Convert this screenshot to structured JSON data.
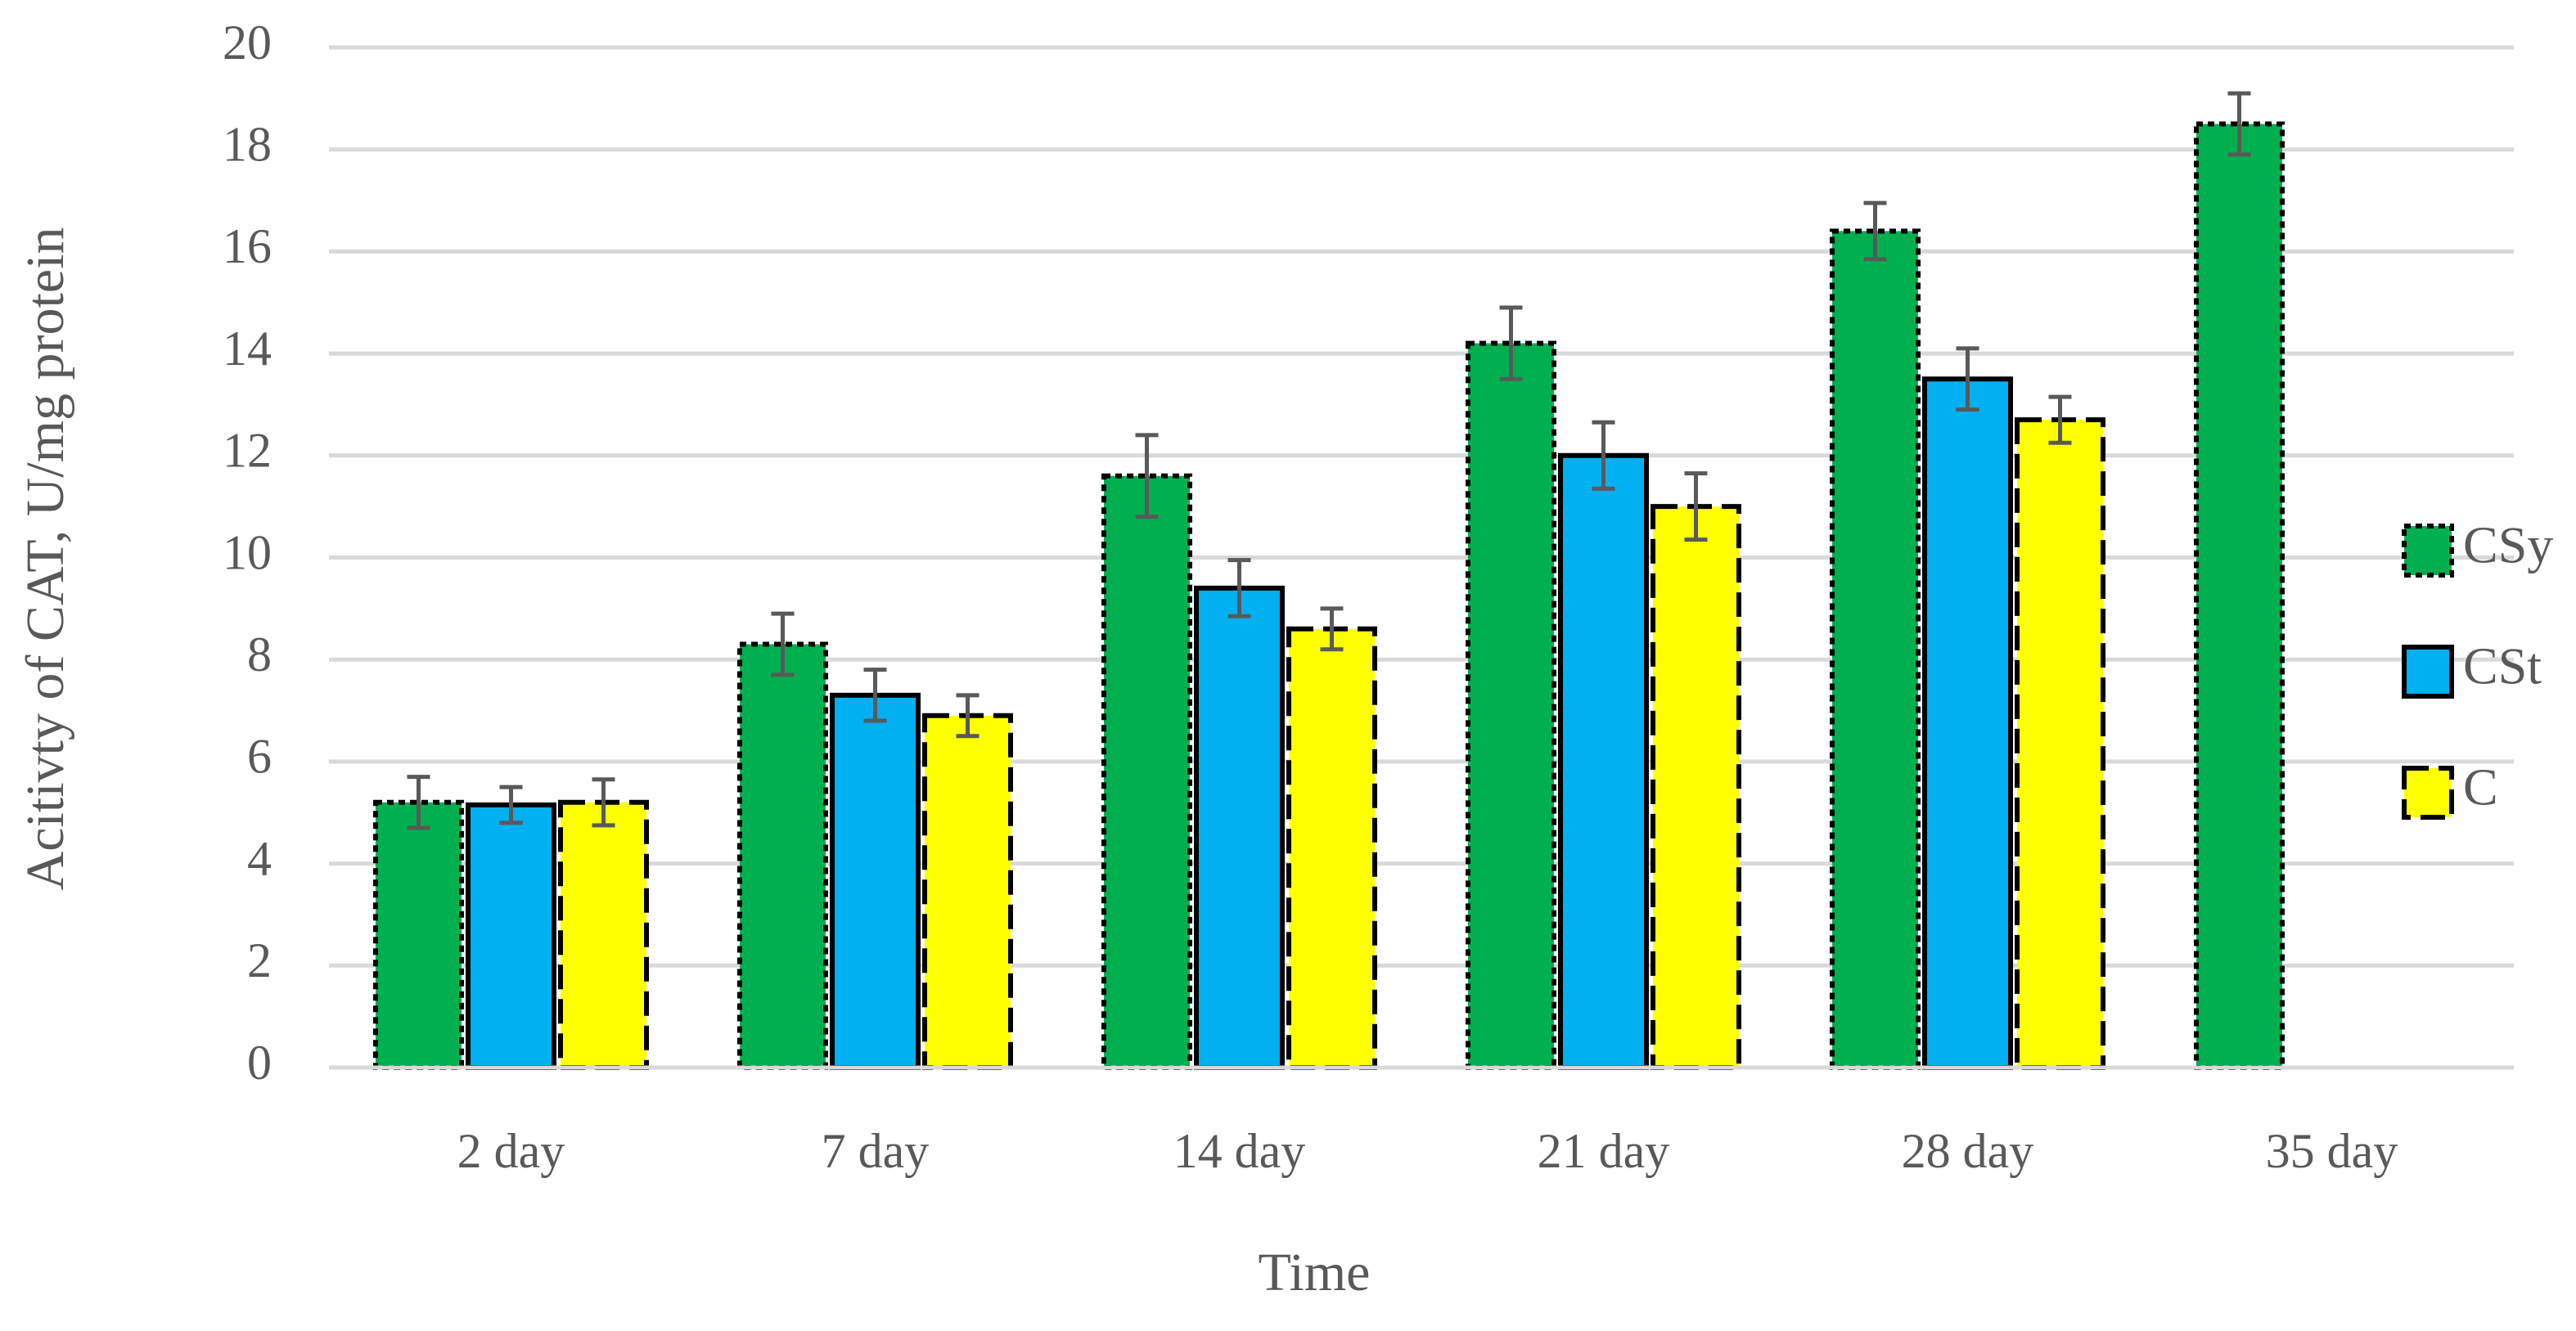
{
  "chart_data": {
    "type": "bar",
    "x_label": "Time",
    "y_label": "Acitivty of CAT, U/mg protein",
    "categories": [
      "2 day",
      "7 day",
      "14 day",
      "21 day",
      "28 day",
      "35 day"
    ],
    "series": [
      {
        "name": "CSy",
        "color": "#00b050",
        "values": [
          5.2,
          8.3,
          11.6,
          14.2,
          16.4,
          18.5
        ],
        "errors": [
          0.5,
          0.6,
          0.8,
          0.7,
          0.55,
          0.6
        ]
      },
      {
        "name": "CSt",
        "color": "#00b0f0",
        "values": [
          5.15,
          7.3,
          9.4,
          12.0,
          13.5,
          null
        ],
        "errors": [
          0.35,
          0.5,
          0.55,
          0.65,
          0.6,
          null
        ]
      },
      {
        "name": "C",
        "color": "#ffff00",
        "values": [
          5.2,
          6.9,
          8.6,
          11.0,
          12.7,
          null
        ],
        "errors": [
          0.45,
          0.4,
          0.4,
          0.65,
          0.45,
          null
        ]
      }
    ],
    "ylim": [
      0,
      20
    ],
    "yticks": [
      0,
      2,
      4,
      6,
      8,
      10,
      12,
      14,
      16,
      18,
      20
    ],
    "grid": true,
    "legend": "right"
  }
}
